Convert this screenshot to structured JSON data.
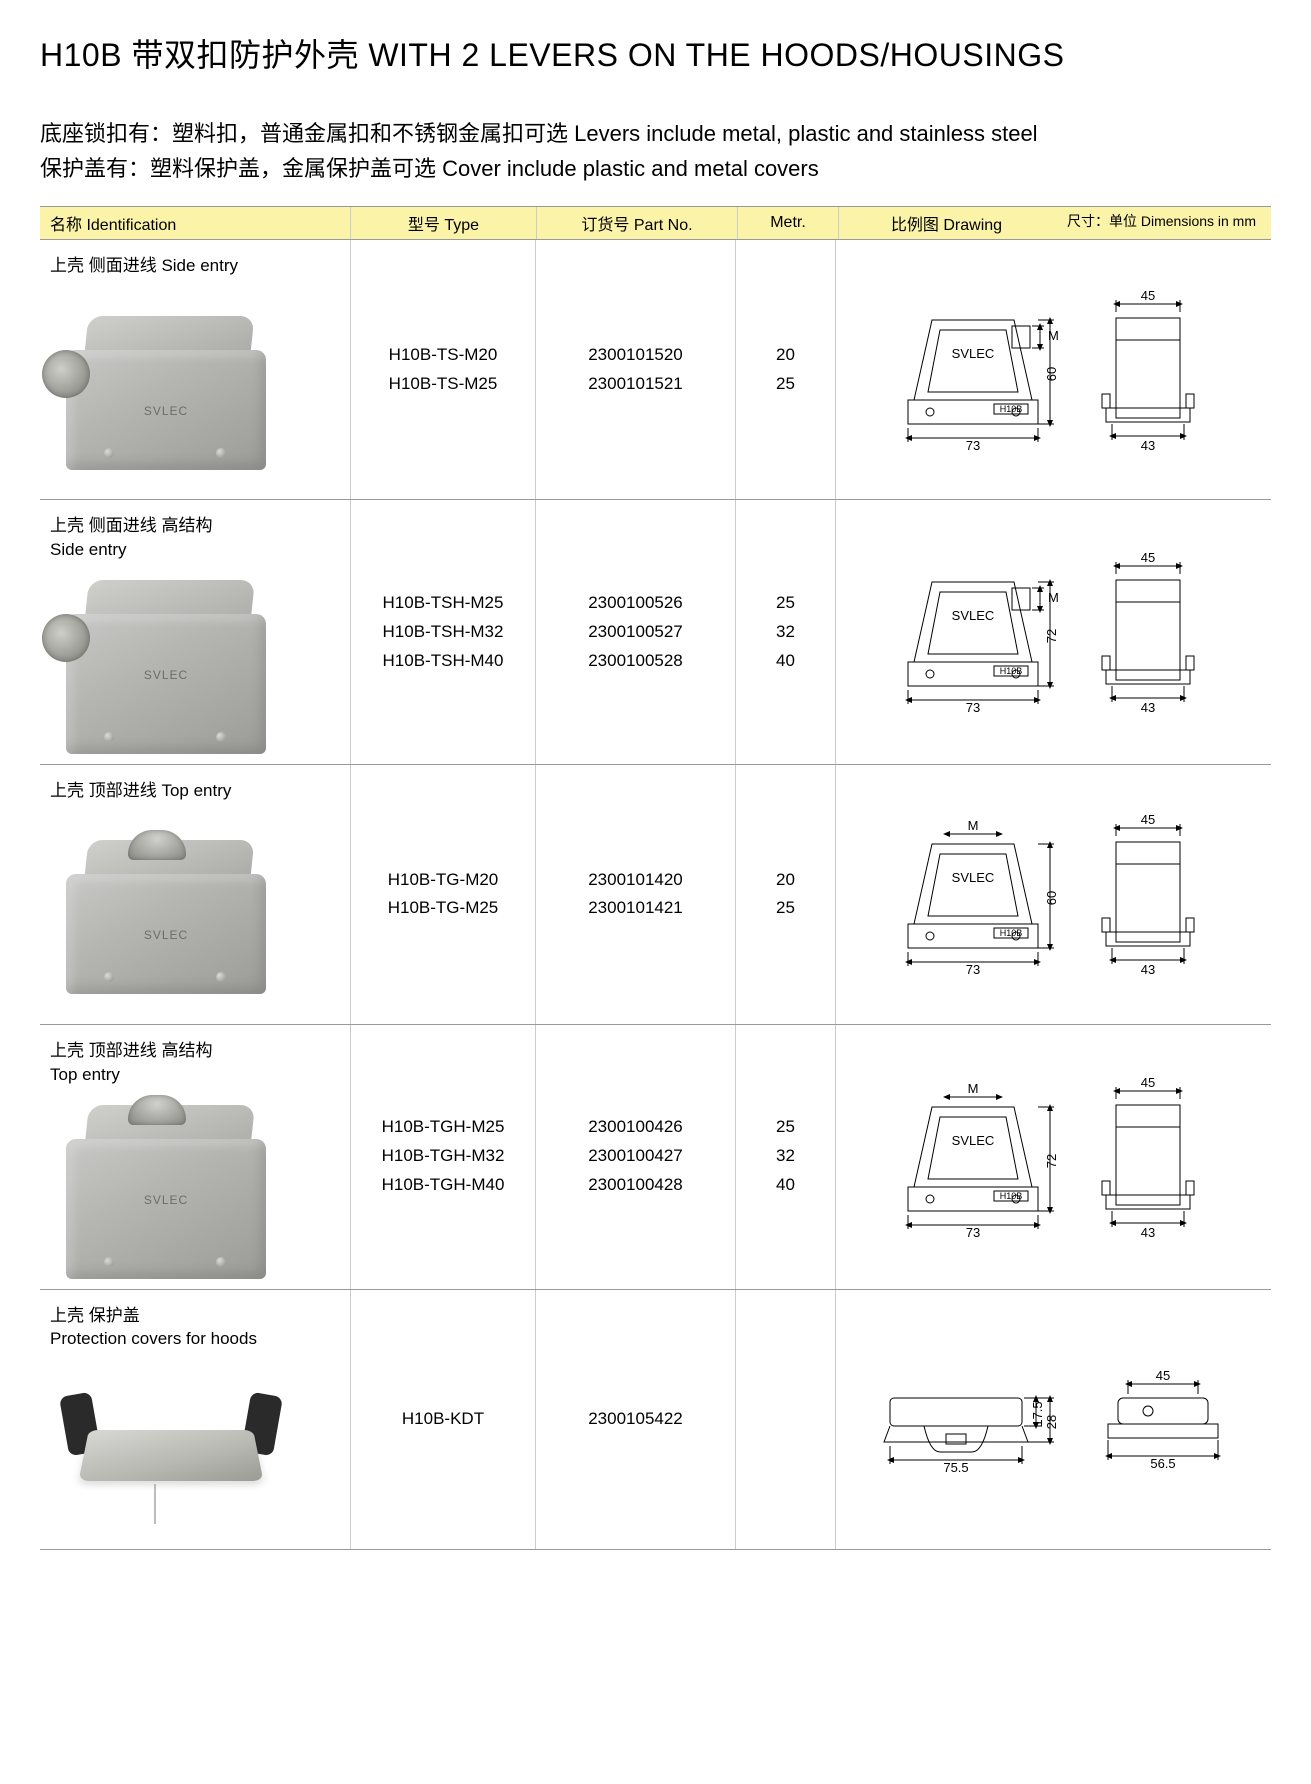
{
  "title": "H10B 带双扣防护外壳  WITH 2 LEVERS ON THE HOODS/HOUSINGS",
  "subtitle_line1": "底座锁扣有：塑料扣，普通金属扣和不锈钢金属扣可选 Levers include metal, plastic and stainless steel",
  "subtitle_line2": "保护盖有：塑料保护盖，金属保护盖可选 Cover include plastic and metal covers",
  "headers": {
    "identification": "名称 Identification",
    "type": "型号 Type",
    "part_no": "订货号 Part No.",
    "metr": "Metr.",
    "drawing": "比例图 Drawing",
    "dimensions": "尺寸：单位 Dimensions in mm"
  },
  "rows": [
    {
      "id_label": "上壳  侧面进线 Side entry",
      "img_variant": "side",
      "types": [
        "H10B-TS-M20",
        "H10B-TS-M25"
      ],
      "parts": [
        "2300101520",
        "2300101521"
      ],
      "metrs": [
        "20",
        "25"
      ],
      "drawing": {
        "front_w": "73",
        "front_h": "60",
        "side_top": "45",
        "side_bottom": "43",
        "brand": "SVLEC",
        "tag": "H10B",
        "topM": "M",
        "front_type": "trapezoid",
        "side_type": "box",
        "m_pos": "right"
      }
    },
    {
      "id_label": "上壳  侧面进线  高结构\nSide entry",
      "img_variant": "side-high",
      "types": [
        "H10B-TSH-M25",
        "H10B-TSH-M32",
        "H10B-TSH-M40"
      ],
      "parts": [
        "2300100526",
        "2300100527",
        "2300100528"
      ],
      "metrs": [
        "25",
        "32",
        "40"
      ],
      "drawing": {
        "front_w": "73",
        "front_h": "72",
        "side_top": "45",
        "side_bottom": "43",
        "brand": "SVLEC",
        "tag": "H10B",
        "topM": "M",
        "front_type": "trapezoid",
        "side_type": "box",
        "m_pos": "right"
      }
    },
    {
      "id_label": "上壳  顶部进线 Top entry",
      "img_variant": "top",
      "types": [
        "H10B-TG-M20",
        "H10B-TG-M25"
      ],
      "parts": [
        "2300101420",
        "2300101421"
      ],
      "metrs": [
        "20",
        "25"
      ],
      "drawing": {
        "front_w": "73",
        "front_h": "60",
        "side_top": "45",
        "side_bottom": "43",
        "brand": "SVLEC",
        "tag": "H10B",
        "topM": "M",
        "front_type": "trapezoid",
        "side_type": "box",
        "m_pos": "top"
      }
    },
    {
      "id_label": "上壳  顶部进线  高结构\nTop entry",
      "img_variant": "top-high",
      "types": [
        "H10B-TGH-M25",
        "H10B-TGH-M32",
        "H10B-TGH-M40"
      ],
      "parts": [
        "2300100426",
        "2300100427",
        "2300100428"
      ],
      "metrs": [
        "25",
        "32",
        "40"
      ],
      "drawing": {
        "front_w": "73",
        "front_h": "72",
        "side_top": "45",
        "side_bottom": "43",
        "brand": "SVLEC",
        "tag": "H10B",
        "topM": "M",
        "front_type": "trapezoid",
        "side_type": "box",
        "m_pos": "top"
      }
    },
    {
      "id_label": "上壳  保护盖\nProtection covers for hoods",
      "img_variant": "cover",
      "types": [
        "H10B-KDT"
      ],
      "parts": [
        "2300105422"
      ],
      "metrs": [
        ""
      ],
      "drawing": {
        "front_w": "75.5",
        "front_h1": "17.5",
        "front_h2": "28",
        "side_top": "45",
        "side_bottom": "56.5",
        "front_type": "cover",
        "side_type": "cover"
      }
    }
  ],
  "colors": {
    "header_bg": "#fbf3a8",
    "border": "#999999",
    "sep": "#cccccc",
    "hood_light": "#cfd0cc",
    "hood_dark": "#9a9b95"
  }
}
